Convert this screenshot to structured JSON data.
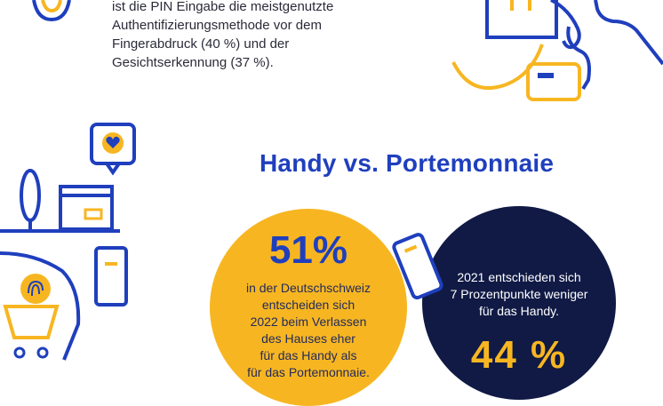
{
  "intro": {
    "lines": [
      "ist die PIN Eingabe die meistgenutzte",
      "Authentifizierungsmethode vor dem",
      "Fingerabdruck (40 %) und der",
      "Gesichtserkennung (37 %)."
    ]
  },
  "heading": "Handy vs. Portemonnaie",
  "stat_phone": {
    "value": "51%",
    "lines": [
      "in der Deutschschweiz",
      "entscheiden sich",
      "2022 beim Verlassen",
      "des Hauses eher",
      "für das Handy als",
      "für das Portemonnaie."
    ]
  },
  "stat_2021": {
    "lines": [
      "2021 entschieden sich",
      "7 Prozentpunkte weniger",
      "für das Handy."
    ],
    "value": "44 %"
  },
  "colors": {
    "blue": "#1f3fbd",
    "yellow": "#f7b621",
    "navy": "#101a45"
  }
}
